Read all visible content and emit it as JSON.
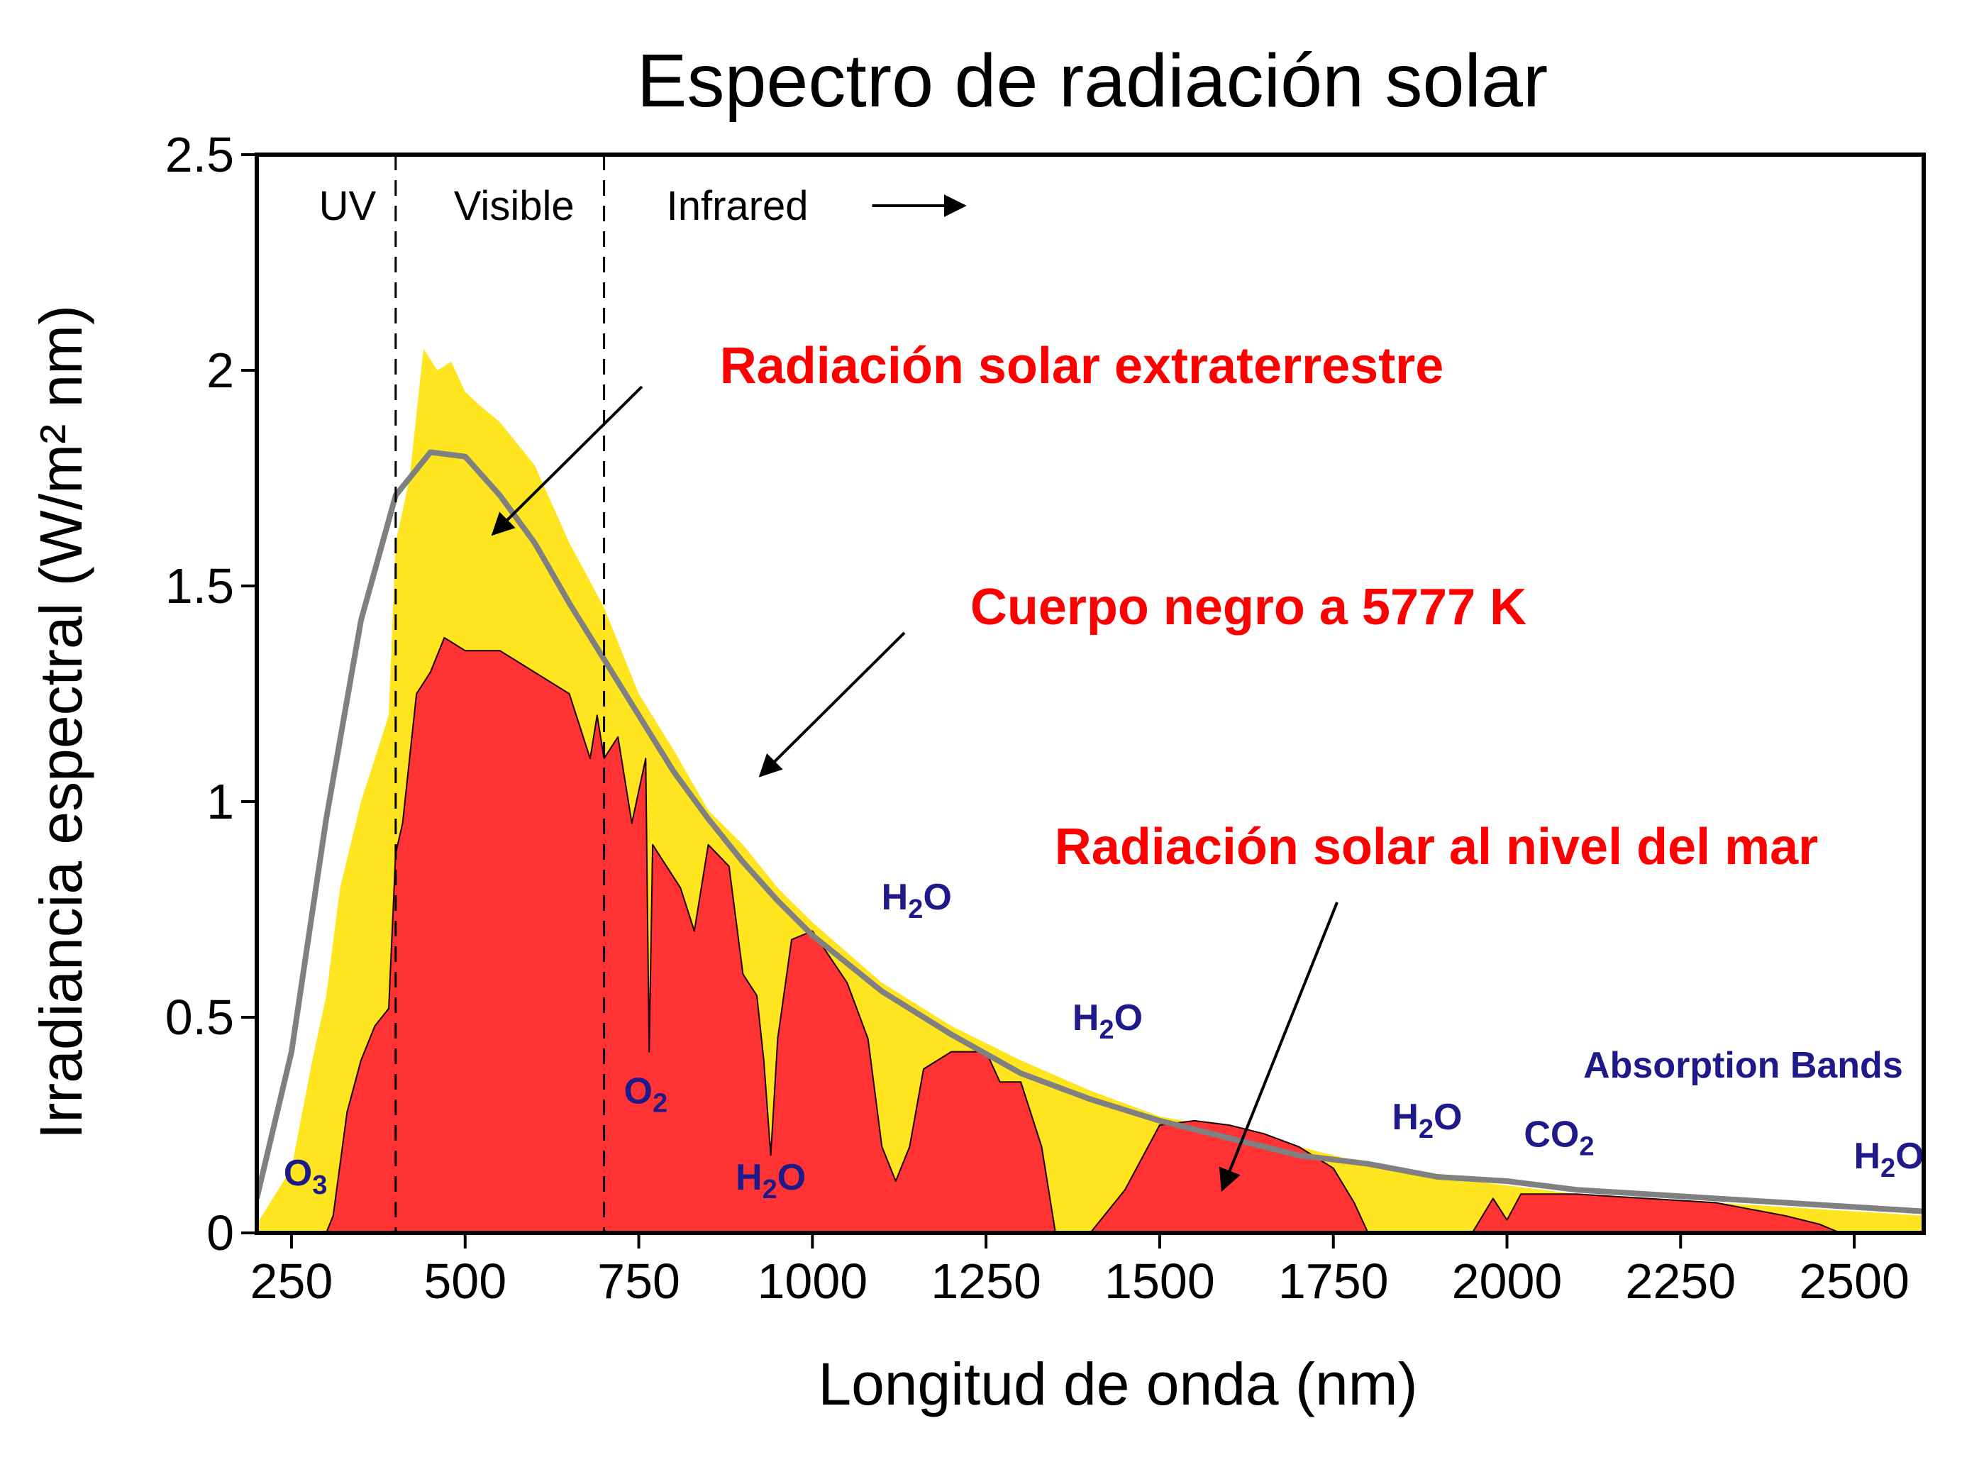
{
  "colors": {
    "extraterrestrial_fill": "#FFE51F",
    "sea_level_fill": "#FF3333",
    "blackbody_line": "#808080",
    "callout_text": "#FF0000",
    "absorption_text": "#1F1A8A",
    "axis": "#000000"
  },
  "chart_data": {
    "type": "area",
    "title": "Espectro de radiación solar",
    "xlabel": "Longitud de onda (nm)",
    "ylabel": "Irradiancia espectral (W/m² nm)",
    "xlim": [
      200,
      2600
    ],
    "ylim": [
      0,
      2.5
    ],
    "xticks": [
      250,
      500,
      750,
      1000,
      1250,
      1500,
      1750,
      2000,
      2250,
      2500
    ],
    "yticks": [
      0,
      0.5,
      1,
      1.5,
      2,
      2.5
    ],
    "ytick_labels": [
      "0",
      "0.5",
      "1",
      "1.5",
      "2",
      "2.5"
    ],
    "grid": false,
    "regions": [
      {
        "label": "UV",
        "x_end": 400
      },
      {
        "label": "Visible",
        "x_start": 400,
        "x_end": 700
      },
      {
        "label": "Infrared",
        "x_start": 700,
        "arrow": "→"
      }
    ],
    "region_boundaries": [
      400,
      700
    ],
    "series": [
      {
        "name": "Radiación solar extraterrestre",
        "style": "area",
        "x": [
          200,
          250,
          280,
          300,
          320,
          350,
          370,
          390,
          400,
          420,
          440,
          460,
          480,
          500,
          520,
          550,
          600,
          650,
          700,
          750,
          800,
          850,
          900,
          950,
          1000,
          1050,
          1100,
          1200,
          1300,
          1400,
          1500,
          1600,
          1700,
          1800,
          1900,
          2000,
          2100,
          2200,
          2300,
          2400,
          2500,
          2600
        ],
        "y": [
          0.02,
          0.15,
          0.4,
          0.55,
          0.8,
          1.0,
          1.1,
          1.2,
          1.6,
          1.75,
          2.05,
          2.0,
          2.02,
          1.95,
          1.92,
          1.88,
          1.78,
          1.6,
          1.45,
          1.25,
          1.12,
          0.98,
          0.9,
          0.8,
          0.72,
          0.65,
          0.58,
          0.48,
          0.4,
          0.33,
          0.27,
          0.24,
          0.2,
          0.16,
          0.13,
          0.11,
          0.09,
          0.08,
          0.07,
          0.06,
          0.05,
          0.04
        ]
      },
      {
        "name": "Cuerpo negro a 5777 K",
        "style": "line",
        "x": [
          200,
          250,
          300,
          350,
          400,
          450,
          500,
          550,
          600,
          650,
          700,
          750,
          800,
          850,
          900,
          950,
          1000,
          1100,
          1200,
          1300,
          1400,
          1500,
          1600,
          1700,
          1800,
          1900,
          2000,
          2100,
          2200,
          2300,
          2400,
          2500,
          2600
        ],
        "y": [
          0.08,
          0.42,
          0.96,
          1.42,
          1.71,
          1.81,
          1.8,
          1.71,
          1.6,
          1.46,
          1.33,
          1.2,
          1.07,
          0.96,
          0.86,
          0.77,
          0.69,
          0.56,
          0.46,
          0.37,
          0.31,
          0.26,
          0.22,
          0.18,
          0.16,
          0.13,
          0.12,
          0.1,
          0.09,
          0.08,
          0.07,
          0.06,
          0.05
        ]
      },
      {
        "name": "Radiación solar al nivel del mar",
        "style": "area",
        "x": [
          300,
          310,
          330,
          350,
          370,
          390,
          400,
          410,
          430,
          450,
          470,
          500,
          550,
          600,
          650,
          680,
          690,
          700,
          720,
          740,
          760,
          765,
          770,
          790,
          810,
          830,
          850,
          880,
          900,
          920,
          930,
          940,
          950,
          970,
          1000,
          1050,
          1080,
          1100,
          1120,
          1140,
          1160,
          1200,
          1250,
          1270,
          1300,
          1330,
          1350,
          1370,
          1400,
          1450,
          1500,
          1550,
          1600,
          1650,
          1700,
          1750,
          1780,
          1800,
          1850,
          1900,
          1950,
          1980,
          2000,
          2020,
          2050,
          2100,
          2200,
          2300,
          2400,
          2450,
          2480,
          2500
        ],
        "y": [
          0.0,
          0.04,
          0.28,
          0.4,
          0.48,
          0.52,
          0.88,
          0.95,
          1.25,
          1.3,
          1.38,
          1.35,
          1.35,
          1.3,
          1.25,
          1.1,
          1.2,
          1.1,
          1.15,
          0.95,
          1.1,
          0.42,
          0.9,
          0.85,
          0.8,
          0.7,
          0.9,
          0.85,
          0.6,
          0.55,
          0.4,
          0.18,
          0.45,
          0.68,
          0.7,
          0.58,
          0.45,
          0.2,
          0.12,
          0.2,
          0.38,
          0.42,
          0.42,
          0.35,
          0.35,
          0.2,
          0.0,
          0.0,
          0.0,
          0.1,
          0.25,
          0.26,
          0.25,
          0.23,
          0.2,
          0.15,
          0.07,
          0.0,
          0.0,
          0.0,
          0.0,
          0.08,
          0.03,
          0.09,
          0.09,
          0.09,
          0.08,
          0.07,
          0.04,
          0.02,
          0.0,
          0.0
        ]
      }
    ],
    "callouts": [
      {
        "text": "Radiación solar extraterrestre",
        "points_to": [
          540,
          1.62
        ]
      },
      {
        "text": "Cuerpo negro a 5777 K",
        "points_to": [
          925,
          1.06
        ]
      },
      {
        "text": "Radiación solar al nivel del mar",
        "points_to": [
          1590,
          0.1
        ]
      }
    ],
    "absorption_labels": [
      {
        "species": "O",
        "sub": "3",
        "x": 270,
        "y": 0.11
      },
      {
        "species": "O",
        "sub": "2",
        "x": 760,
        "y": 0.3
      },
      {
        "species": "H",
        "sub": "2",
        "tail": "O",
        "x": 940,
        "y": 0.1
      },
      {
        "species": "H",
        "sub": "2",
        "tail": "O",
        "x": 1150,
        "y": 0.75
      },
      {
        "species": "H",
        "sub": "2",
        "tail": "O",
        "x": 1425,
        "y": 0.47
      },
      {
        "species": "H",
        "sub": "2",
        "tail": "O",
        "x": 1885,
        "y": 0.24
      },
      {
        "species": "CO",
        "sub": "2",
        "x": 2075,
        "y": 0.2
      },
      {
        "species": "H",
        "sub": "2",
        "tail": "O",
        "x": 2550,
        "y": 0.15
      }
    ],
    "absorption_caption": {
      "text": "Absorption Bands",
      "x": 2340,
      "y": 0.36
    }
  }
}
